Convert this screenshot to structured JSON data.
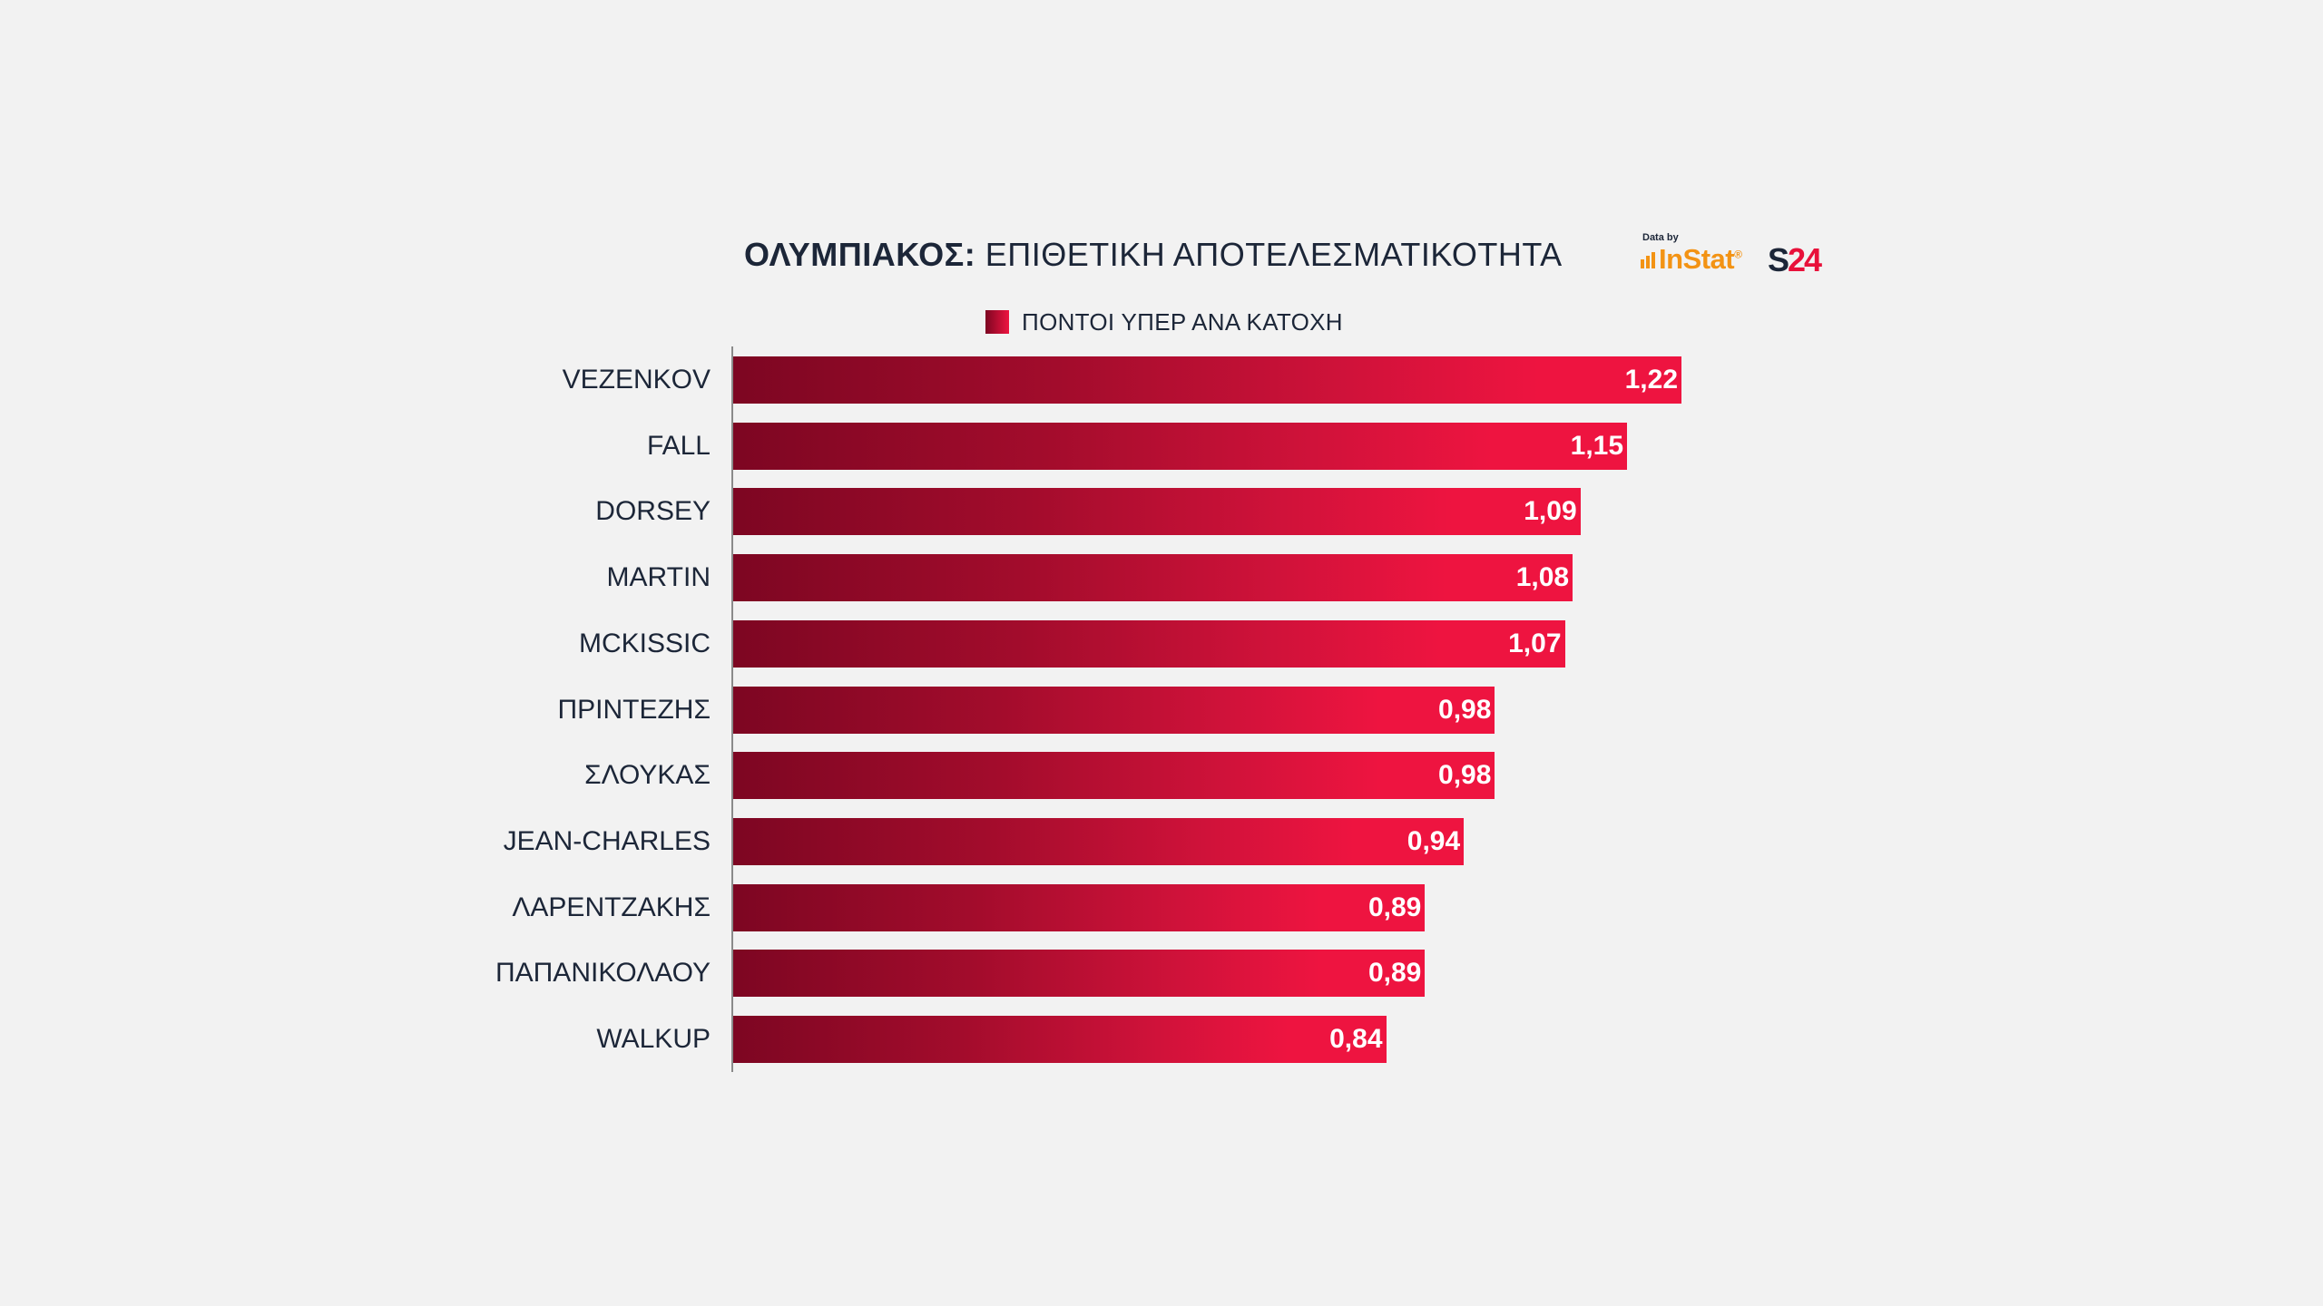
{
  "title": {
    "team": "ΟΛΥΜΠΙΑΚΟΣ:",
    "rest": "ΕΠΙΘΕΤΙΚΗ ΑΠΟΤΕΛΕΣΜΑΤΙΚΟΤΗΤΑ"
  },
  "brand": {
    "data_by": "Data by",
    "instat": "InStat",
    "instat_mark": "®",
    "s24_s": "S",
    "s24_n": "24"
  },
  "colors": {
    "bar_start": "#7d0622",
    "bar_end": "#ee1440",
    "text": "#1c2638",
    "background": "#f2f2f2"
  },
  "chart_data": {
    "type": "bar",
    "orientation": "horizontal",
    "categories": [
      "VEZENKOV",
      "FALL",
      "DORSEY",
      "MARTIN",
      "MCKISSIC",
      "ΠΡΙΝΤΕΖΗΣ",
      "ΣΛΟΥΚΑΣ",
      "JEAN-CHARLES",
      "ΛΑΡΕΝΤΖΑΚΗΣ",
      "ΠΑΠΑΝΙΚΟΛΑΟΥ",
      "WALKUP"
    ],
    "series": [
      {
        "name": "ΠΟΝΤΟΙ ΥΠΕΡ ΑΝΑ ΚΑΤΟΧΗ",
        "values": [
          1.22,
          1.15,
          1.09,
          1.08,
          1.07,
          0.98,
          0.98,
          0.94,
          0.89,
          0.89,
          0.84
        ],
        "labels": [
          "1,22",
          "1,15",
          "1,09",
          "1,08",
          "1,07",
          "0,98",
          "0,98",
          "0,94",
          "0,89",
          "0,89",
          "0,84"
        ]
      }
    ],
    "xlim": [
      0,
      1.22
    ],
    "grid": false,
    "legend": "top-center"
  }
}
